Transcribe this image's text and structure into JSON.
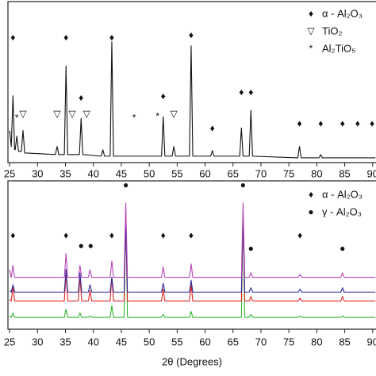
{
  "chart_data": [
    {
      "type": "line",
      "xlim": [
        24.7,
        90.6
      ],
      "xticks": [
        25,
        30,
        35,
        40,
        45,
        50,
        55,
        60,
        65,
        70,
        75,
        80,
        85,
        90
      ],
      "ylim": [
        0,
        100
      ],
      "x": [
        25,
        25.3,
        25.6,
        25.9,
        26.0,
        26.3,
        26.6,
        27.1,
        27.4,
        27.7,
        33.2,
        33.5,
        33.8,
        34.8,
        35.1,
        35.4,
        37.5,
        37.8,
        38.1,
        41.4,
        41.7,
        42.0,
        43.0,
        43.3,
        43.6,
        52.2,
        52.5,
        52.8,
        54.1,
        54.4,
        54.7,
        57.2,
        57.5,
        57.8,
        61.0,
        61.3,
        61.6,
        66.2,
        66.5,
        66.8,
        67.9,
        68.2,
        68.5,
        76.6,
        76.9,
        77.2,
        80.4,
        80.7,
        81.0,
        90.5
      ],
      "series": [
        {
          "color": "#111111",
          "values": [
            20,
            10,
            41.5,
            8,
            8,
            16.5,
            7,
            7,
            20,
            6,
            5,
            10,
            5,
            5,
            60,
            5,
            5,
            27.5,
            5,
            4,
            8,
            4,
            4,
            75,
            4,
            4,
            28.5,
            4,
            4,
            10,
            4,
            4,
            72.5,
            4,
            4,
            7.5,
            4,
            4,
            21.5,
            4,
            4,
            32.5,
            4,
            3,
            10,
            3,
            3,
            5,
            3,
            3
          ]
        }
      ],
      "markers": [
        {
          "x": 25.6,
          "y": 77.5,
          "label": "♦"
        },
        {
          "x": 35.1,
          "y": 77.5,
          "label": "♦"
        },
        {
          "x": 43.3,
          "y": 77.5,
          "label": "♦"
        },
        {
          "x": 57.5,
          "y": 79,
          "label": "♦"
        },
        {
          "x": 37.8,
          "y": 40,
          "label": "♦"
        },
        {
          "x": 52.5,
          "y": 41,
          "label": "♦"
        },
        {
          "x": 61.3,
          "y": 21,
          "label": "♦"
        },
        {
          "x": 66.5,
          "y": 43.5,
          "label": "♦"
        },
        {
          "x": 68.2,
          "y": 43.5,
          "label": "♦"
        },
        {
          "x": 76.9,
          "y": 24,
          "label": "♦"
        },
        {
          "x": 80.7,
          "y": 24,
          "label": "♦"
        },
        {
          "x": 84.6,
          "y": 24,
          "label": "♦"
        },
        {
          "x": 87.3,
          "y": 24,
          "label": "♦"
        },
        {
          "x": 89.9,
          "y": 24,
          "label": "♦"
        },
        {
          "x": 27.4,
          "y": 30,
          "label": "▽"
        },
        {
          "x": 33.5,
          "y": 30,
          "label": "▽"
        },
        {
          "x": 36.2,
          "y": 30,
          "label": "▽"
        },
        {
          "x": 38.8,
          "y": 30,
          "label": "▽"
        },
        {
          "x": 54.4,
          "y": 30,
          "label": "▽"
        },
        {
          "x": 26.3,
          "y": 27.5,
          "label": "*"
        },
        {
          "x": 47.3,
          "y": 27.5,
          "label": "*"
        },
        {
          "x": 51.5,
          "y": 28.5,
          "label": "*"
        }
      ],
      "legend": [
        {
          "symbol": "♦",
          "label": "α - Al₂O₃"
        },
        {
          "symbol": "▽",
          "label": "TiO₂"
        },
        {
          "symbol": "*",
          "label": "Al₂TiO₅"
        }
      ]
    },
    {
      "type": "line",
      "xlim": [
        24.7,
        90.6
      ],
      "xticks": [
        25,
        30,
        35,
        40,
        45,
        50,
        55,
        60,
        65,
        70,
        75,
        80,
        85,
        90
      ],
      "ylim": [
        0,
        100
      ],
      "x_label": "2θ (Degrees)",
      "x": [
        25,
        25.3,
        25.6,
        25.9,
        34.8,
        35.1,
        35.4,
        37.3,
        37.6,
        37.9,
        39.1,
        39.4,
        39.7,
        43.0,
        43.3,
        43.6,
        45.5,
        45.8,
        46.1,
        52.2,
        52.5,
        52.8,
        57.2,
        57.5,
        57.8,
        66.5,
        66.8,
        67.1,
        67.9,
        68.2,
        68.5,
        76.7,
        77.0,
        77.3,
        84.3,
        84.6,
        84.9,
        90.5
      ],
      "series": [
        {
          "color": "#33b533",
          "values": [
            9,
            8,
            11,
            8,
            8,
            13.5,
            8,
            8,
            11,
            8,
            8,
            9,
            8,
            8,
            16,
            8,
            8,
            78,
            8,
            8,
            10,
            8,
            8,
            12,
            8,
            8,
            78,
            8,
            8,
            10,
            8,
            8,
            9,
            8,
            8,
            9,
            8,
            8
          ]
        },
        {
          "color": "#e02424",
          "values": [
            20,
            19,
            28.6,
            19,
            19,
            38,
            19,
            19,
            35,
            19,
            19,
            26,
            19,
            19,
            35,
            19,
            19,
            76,
            19,
            19,
            27,
            19,
            19,
            30,
            19,
            19,
            79.5,
            19,
            19,
            22,
            19,
            19,
            21,
            19,
            19,
            22,
            19,
            19
          ]
        },
        {
          "color": "#2b2b99",
          "values": [
            26,
            25,
            30,
            25,
            25,
            40.5,
            25,
            25,
            38,
            25,
            25,
            30,
            25,
            25,
            35,
            25,
            25,
            73,
            25,
            25,
            31,
            25,
            25,
            33,
            25,
            25,
            78,
            25,
            25,
            28,
            25,
            25,
            27,
            25,
            25,
            28,
            25,
            25
          ]
        },
        {
          "color": "#b444b4",
          "values": [
            40,
            35,
            43,
            35,
            35,
            51,
            35,
            35,
            43,
            35,
            35,
            40,
            35,
            35,
            46,
            35,
            35,
            85,
            35,
            35,
            42,
            35,
            35,
            44,
            35,
            35,
            85,
            35,
            35,
            38,
            35,
            35,
            37,
            35,
            35,
            38,
            35,
            35
          ]
        }
      ],
      "markers": [
        {
          "x": 25.6,
          "y": 63,
          "label": "♦"
        },
        {
          "x": 35.1,
          "y": 63,
          "label": "♦"
        },
        {
          "x": 43.3,
          "y": 63,
          "label": "♦"
        },
        {
          "x": 52.5,
          "y": 63,
          "label": "♦"
        },
        {
          "x": 57.5,
          "y": 63,
          "label": "♦"
        },
        {
          "x": 77.0,
          "y": 63,
          "label": "♦"
        },
        {
          "x": 45.8,
          "y": 97,
          "label": "●"
        },
        {
          "x": 66.8,
          "y": 97,
          "label": "●"
        },
        {
          "x": 37.8,
          "y": 56,
          "label": "●"
        },
        {
          "x": 39.5,
          "y": 56,
          "label": "●"
        },
        {
          "x": 68.2,
          "y": 54,
          "label": "●"
        },
        {
          "x": 84.6,
          "y": 54,
          "label": "●"
        }
      ],
      "legend": [
        {
          "symbol": "♦",
          "label": "α - Al₂O₃"
        },
        {
          "symbol": "●",
          "label": "γ - Al₂O₃"
        }
      ]
    }
  ]
}
